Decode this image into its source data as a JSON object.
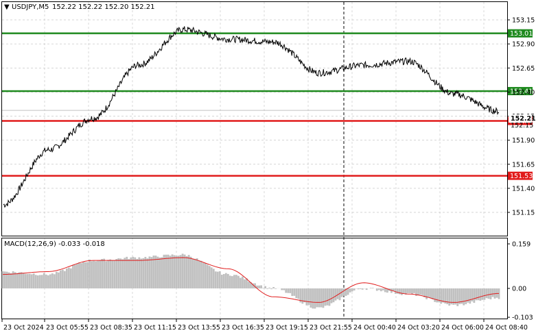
{
  "window": {
    "symbol_label": "USDJPY,M5",
    "ohlc": "152.22 152.22 152.20 152.21"
  },
  "indicator": {
    "label": "MACD(12,26,9) -0.033 -0.018",
    "ticks": [
      "0.159",
      "0.00",
      "-0.103"
    ]
  },
  "price_axis": {
    "ticks": [
      "153.15",
      "152.90",
      "152.65",
      "152.40",
      "152.15",
      "151.90",
      "151.65",
      "151.40",
      "151.15"
    ],
    "current_price": "152.21",
    "cutoff_label": "152.15"
  },
  "levels": [
    {
      "name": "resistance-high",
      "value": "153.01",
      "color": "#1f8a1f"
    },
    {
      "name": "resistance-low",
      "value": "152.41",
      "color": "#1f8a1f"
    },
    {
      "name": "support-high",
      "value": "152.10",
      "color": "#e11b1b"
    },
    {
      "name": "support-low",
      "value": "151.53",
      "color": "#e11b1b"
    }
  ],
  "time_axis": {
    "labels": [
      "23 Oct 2024",
      "23 Oct 05:55",
      "23 Oct 08:35",
      "23 Oct 11:15",
      "23 Oct 13:55",
      "23 Oct 16:35",
      "23 Oct 19:15",
      "23 Oct 21:55",
      "24 Oct 00:40",
      "24 Oct 03:20",
      "24 Oct 06:00",
      "24 Oct 08:40"
    ]
  },
  "chart_data": {
    "type": "line",
    "title": "USDJPY,M5",
    "ylim": [
      151.1,
      153.2
    ],
    "x": [
      "23 Oct 2024",
      "23 Oct 05:55",
      "23 Oct 08:35",
      "23 Oct 11:15",
      "23 Oct 13:55",
      "23 Oct 16:35",
      "23 Oct 19:15",
      "23 Oct 21:55",
      "24 Oct 00:40",
      "24 Oct 03:20",
      "24 Oct 06:00",
      "24 Oct 08:40"
    ],
    "price": [
      151.23,
      151.8,
      152.13,
      152.68,
      153.05,
      152.95,
      152.92,
      152.6,
      152.68,
      152.72,
      152.38,
      152.2
    ],
    "macd_ylim": [
      -0.103,
      0.159
    ],
    "macd_histogram": [
      0.06,
      0.05,
      0.1,
      0.11,
      0.12,
      0.05,
      0.0,
      -0.07,
      0.0,
      -0.02,
      -0.06,
      -0.033
    ],
    "macd_signal": [
      0.05,
      0.06,
      0.1,
      0.1,
      0.11,
      0.07,
      -0.03,
      -0.05,
      0.02,
      -0.02,
      -0.05,
      -0.018
    ]
  }
}
